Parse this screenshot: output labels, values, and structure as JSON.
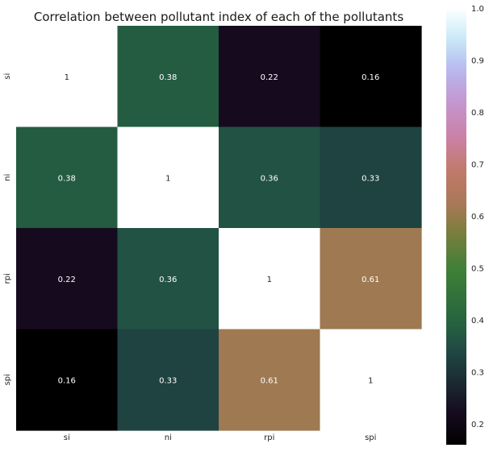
{
  "chart_data": {
    "type": "heatmap",
    "title": "Correlation between pollutant index of each of the pollutants",
    "x_categories": [
      "si",
      "ni",
      "rpi",
      "spi"
    ],
    "y_categories": [
      "si",
      "ni",
      "rpi",
      "spi"
    ],
    "values": [
      [
        1,
        0.38,
        0.22,
        0.16
      ],
      [
        0.38,
        1,
        0.36,
        0.33
      ],
      [
        0.22,
        0.36,
        1,
        0.61
      ],
      [
        0.16,
        0.33,
        0.61,
        1
      ]
    ],
    "cell_labels": [
      [
        "1",
        "0.38",
        "0.22",
        "0.16"
      ],
      [
        "0.38",
        "1",
        "0.36",
        "0.33"
      ],
      [
        "0.22",
        "0.36",
        "1",
        "0.61"
      ],
      [
        "0.16",
        "0.33",
        "0.61",
        "1"
      ]
    ],
    "colormap": "cubehelix",
    "colorbar": {
      "range": [
        0.16,
        1.0
      ],
      "ticks": [
        0.2,
        0.3,
        0.4,
        0.5,
        0.6,
        0.7,
        0.8,
        0.9,
        1.0
      ],
      "tick_labels": [
        "0.2",
        "0.3",
        "0.4",
        "0.5",
        "0.6",
        "0.7",
        "0.8",
        "0.9",
        "1.0"
      ]
    },
    "grid": false,
    "xlabel": "",
    "ylabel": ""
  }
}
